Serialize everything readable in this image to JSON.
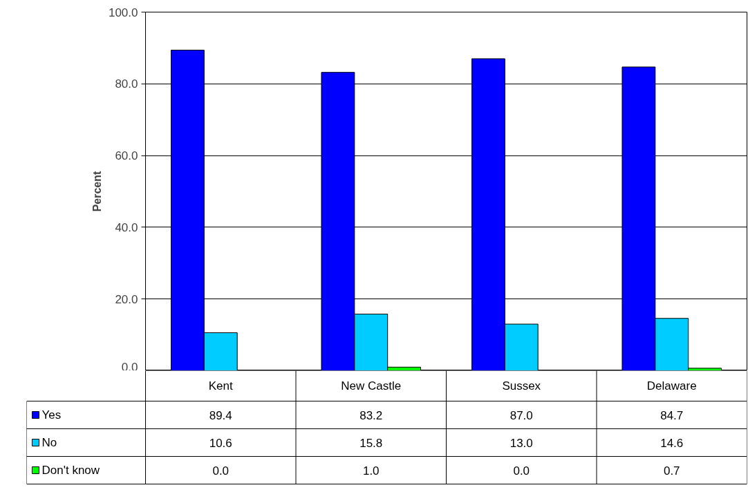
{
  "chart_data": {
    "type": "bar",
    "ylabel": "Percent",
    "categories": [
      "Kent",
      "New Castle",
      "Sussex",
      "Delaware"
    ],
    "series": [
      {
        "name": "Yes",
        "color": "#0000ff",
        "values": [
          89.4,
          83.2,
          87.0,
          84.7
        ],
        "value_labels": [
          "89.4",
          "83.2",
          "87.0",
          "84.7"
        ]
      },
      {
        "name": "No",
        "color": "#00ccff",
        "values": [
          10.6,
          15.8,
          13.0,
          14.6
        ],
        "value_labels": [
          "10.6",
          "15.8",
          "13.0",
          "14.6"
        ]
      },
      {
        "name": "Don't know",
        "color": "#00ff00",
        "values": [
          0.0,
          1.0,
          0.0,
          0.7
        ],
        "value_labels": [
          "0.0",
          "1.0",
          "0.0",
          "0.7"
        ]
      }
    ],
    "ylim": [
      0,
      100
    ],
    "yticks": [
      {
        "value": 0,
        "label": "0.0"
      },
      {
        "value": 20,
        "label": "20.0"
      },
      {
        "value": 40,
        "label": "40.0"
      },
      {
        "value": 60,
        "label": "60.0"
      },
      {
        "value": 80,
        "label": "80.0"
      },
      {
        "value": 100,
        "label": "100.0"
      }
    ],
    "grid": "y",
    "legend": "bottom"
  }
}
